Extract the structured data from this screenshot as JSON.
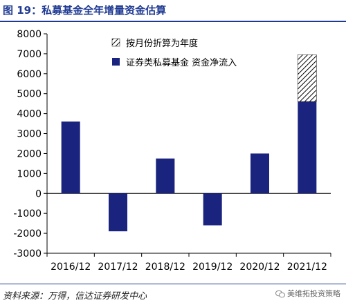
{
  "header": {
    "title": "图 19：私募基金全年增量资金估算"
  },
  "footer": {
    "source": "资料来源：万得，信达证券研发中心",
    "watermark": "美维拓投资策略"
  },
  "colors": {
    "bar": "#1a237e",
    "brand": "#1f3a93",
    "axis": "#000000"
  },
  "chart_data": {
    "type": "bar",
    "title": "",
    "xlabel": "",
    "ylabel": "",
    "categories": [
      "2016/12",
      "2017/12",
      "2018/12",
      "2019/12",
      "2020/12",
      "2021/12"
    ],
    "ylim": [
      -3000,
      8000
    ],
    "yticks": [
      8000,
      7000,
      6000,
      5000,
      4000,
      3000,
      2000,
      1000,
      0,
      -1000,
      -2000,
      -3000
    ],
    "grid": false,
    "legend_position": "top-right",
    "series": [
      {
        "name": "证券类私募基金 资金净流入",
        "style": "solid",
        "values": [
          3600,
          -1900,
          1750,
          -1600,
          2000,
          4600
        ]
      },
      {
        "name": "按月份折算为年度",
        "style": "hatched",
        "stacked_on": "证券类私募基金 资金净流入",
        "values": [
          null,
          null,
          null,
          null,
          null,
          2350
        ]
      }
    ]
  }
}
